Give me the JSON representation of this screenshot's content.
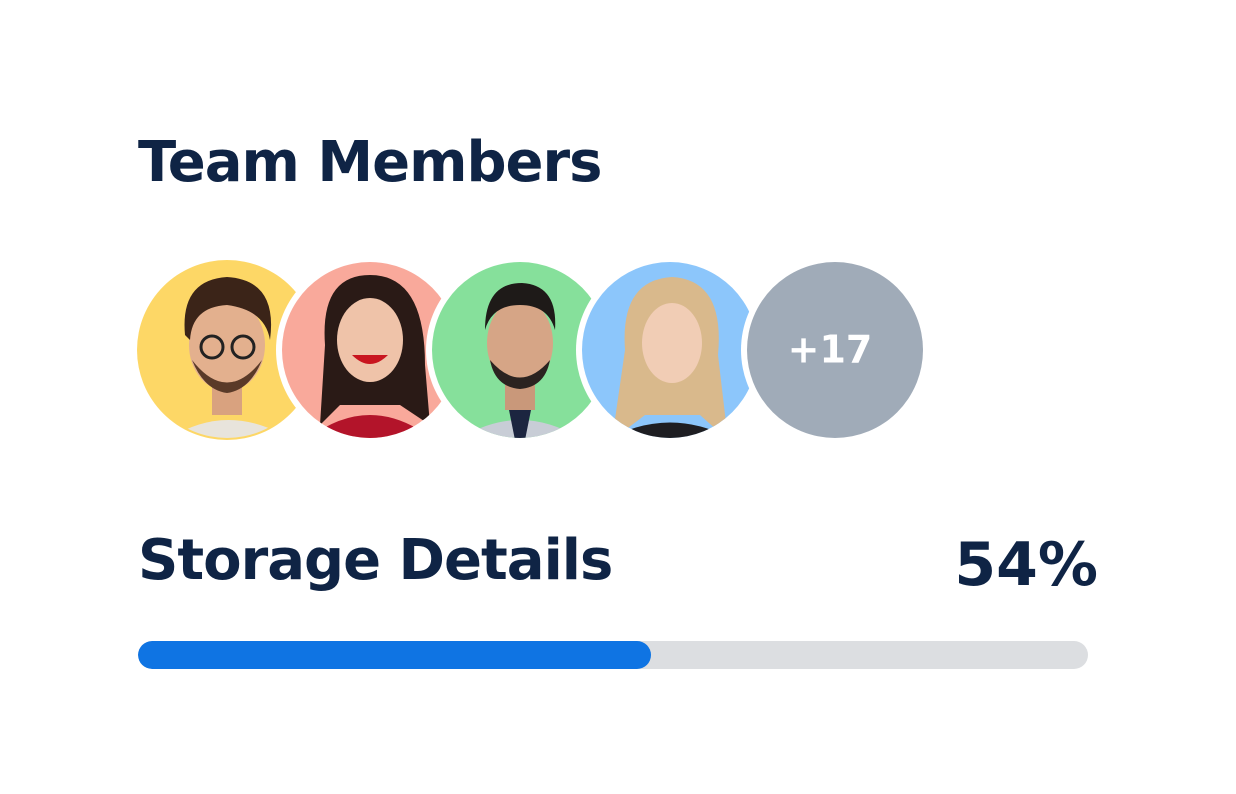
{
  "team": {
    "title": "Team Members",
    "more": "+17"
  },
  "storage": {
    "title": "Storage Details",
    "value": 54,
    "value_label": "54%"
  }
}
